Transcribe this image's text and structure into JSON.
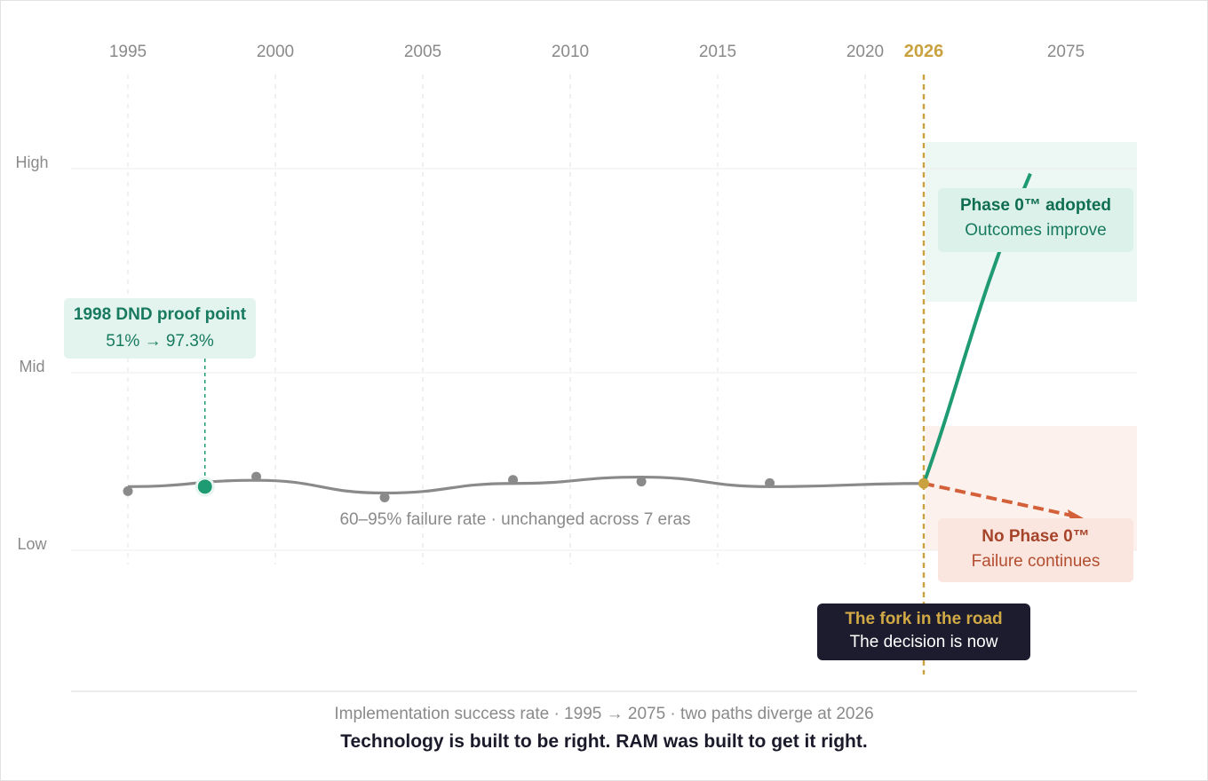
{
  "colors": {
    "history_line": "#8a8a8a",
    "adopt_path": "#1f9b73",
    "no_adopt_path": "#d4603a",
    "fork_marker": "#c9a23f",
    "adopt_zone": "#edf7f3",
    "no_adopt_zone": "#fcf1ed"
  },
  "chart_data": {
    "type": "line",
    "x_ticks": [
      "1995",
      "2000",
      "2005",
      "2010",
      "2015",
      "2020",
      "2026",
      "2075"
    ],
    "highlight_tick": "2026",
    "y_ticks": [
      "High",
      "Mid",
      "Low"
    ],
    "grid": true,
    "series": [
      {
        "points": [
          {
            "x": "1995",
            "y": 0.3
          },
          {
            "x": "2000",
            "y": 0.31
          },
          {
            "x": "2005",
            "y": 0.29
          },
          {
            "x": "2010",
            "y": 0.305
          },
          {
            "x": "2015",
            "y": 0.315
          },
          {
            "x": "2020",
            "y": 0.3
          },
          {
            "x": "2026",
            "y": 0.305
          }
        ]
      },
      {
        "points": [
          {
            "x": "2026",
            "y": 0.305
          },
          {
            "x": "2075",
            "y": 0.82
          }
        ]
      },
      {
        "points": [
          {
            "x": "2026",
            "y": 0.305
          },
          {
            "x": "2075",
            "y": 0.2
          }
        ]
      }
    ],
    "proof_point": {
      "x": "1998",
      "y": 0.3
    },
    "annotations": {
      "proof_title": "1998 DND proof point",
      "proof_value": "51% → 97.3%",
      "history_note": "60–95% failure rate · unchanged across 7 eras",
      "adopt_title": "Phase 0™ adopted",
      "adopt_sub": "Outcomes improve",
      "no_adopt_title": "No Phase 0™",
      "no_adopt_sub": "Failure continues",
      "fork_title": "The fork in the road",
      "fork_sub": "The decision is now"
    },
    "caption": "Implementation success rate · 1995 → 2075 · two paths diverge at 2026",
    "tagline": "Technology is built to be right. RAM was built to get it right."
  }
}
